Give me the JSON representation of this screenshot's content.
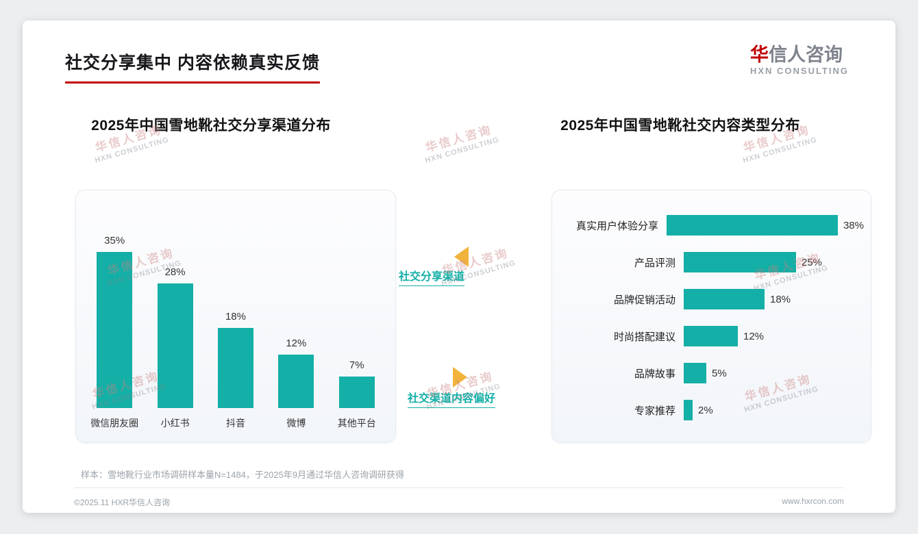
{
  "page": {
    "title": "社交分享集中 内容依赖真实反馈",
    "footer_note": "样本：雪地靴行业市场调研样本量N=1484，于2025年9月通过华信人咨询调研获得",
    "copyright": "©2025.11 HXR华信人咨询",
    "website": "www.hxrcon.com"
  },
  "logo": {
    "cn_first": "华",
    "cn_rest": "信人咨询",
    "en": "HXN CONSULTING"
  },
  "watermark": {
    "cn": "华信人咨询",
    "en": "HXN CONSULTING"
  },
  "middle": {
    "label_top": "社交分享渠道",
    "label_bottom": "社交渠道内容偏好"
  },
  "colors": {
    "teal": "#14AFA6",
    "red": "#C00000",
    "arrow_yellow": "#F2B33D"
  },
  "chart_data": [
    {
      "type": "bar",
      "orientation": "vertical",
      "title": "2025年中国雪地靴社交分享渠道分布",
      "categories": [
        "微信朋友圈",
        "小红书",
        "抖音",
        "微博",
        "其他平台"
      ],
      "values": [
        35,
        28,
        18,
        12,
        7
      ],
      "unit": "%",
      "ylim": [
        0,
        35
      ],
      "grid": false,
      "legend": "none"
    },
    {
      "type": "bar",
      "orientation": "horizontal",
      "title": "2025年中国雪地靴社交内容类型分布",
      "categories": [
        "真实用户体验分享",
        "产品评测",
        "品牌促销活动",
        "时尚搭配建议",
        "品牌故事",
        "专家推荐"
      ],
      "values": [
        38,
        25,
        18,
        12,
        5,
        2
      ],
      "unit": "%",
      "xlim": [
        0,
        40
      ],
      "grid": false,
      "legend": "none"
    }
  ]
}
